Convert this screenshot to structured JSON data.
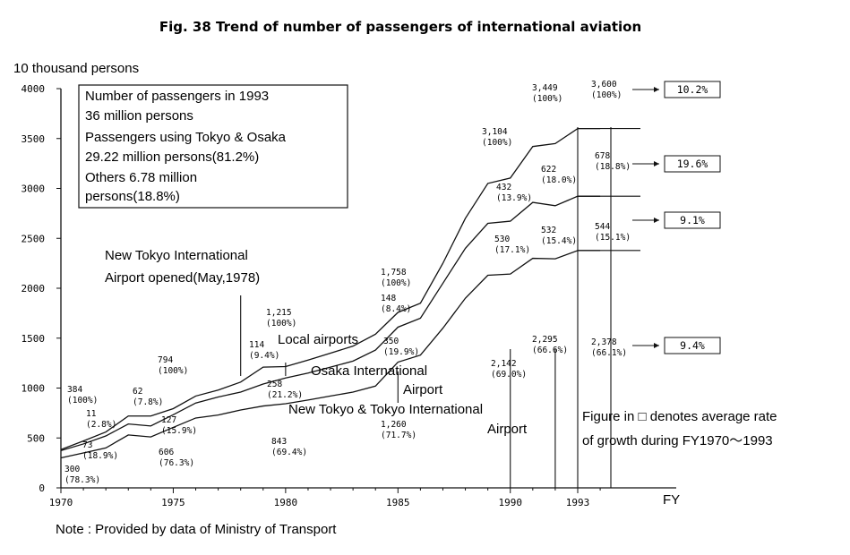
{
  "chart_data": {
    "type": "line",
    "title": "Fig. 38 Trend of number of passengers of international aviation",
    "ylabel": "10 thousand persons",
    "xlabel": "FY",
    "ylim": [
      0,
      4000
    ],
    "yticks": [
      "4000",
      "3500",
      "3000",
      "2500",
      "2000",
      "1500",
      "1000",
      "500",
      "0"
    ],
    "xticks": [
      "1970",
      "1975",
      "1980",
      "1985",
      "1990",
      "1993"
    ],
    "x": [
      1970,
      1971,
      1972,
      1973,
      1974,
      1975,
      1976,
      1977,
      1978,
      1979,
      1980,
      1981,
      1982,
      1983,
      1984,
      1985,
      1986,
      1987,
      1988,
      1989,
      1990,
      1991,
      1992,
      1993,
      1994
    ],
    "series": [
      {
        "values": [
          300,
          350,
          400,
          530,
          510,
          606,
          700,
          730,
          780,
          820,
          843,
          880,
          920,
          960,
          1020,
          1260,
          1330,
          1600,
          1900,
          2130,
          2142,
          2300,
          2295,
          2378,
          2378
        ]
      },
      {
        "values": [
          373,
          440,
          520,
          640,
          620,
          733,
          850,
          910,
          960,
          1040,
          1101,
          1150,
          1210,
          1270,
          1380,
          1610,
          1700,
          2050,
          2400,
          2650,
          2672,
          2860,
          2827,
          2922,
          2922
        ]
      },
      {
        "values": [
          384,
          470,
          560,
          720,
          720,
          794,
          920,
          980,
          1060,
          1210,
          1215,
          1280,
          1350,
          1420,
          1540,
          1758,
          1850,
          2250,
          2700,
          3050,
          3104,
          3420,
          3449,
          3600,
          3600
        ]
      }
    ],
    "point_labels": [
      {
        "value": "384",
        "pct": "(100%)"
      },
      {
        "value": "11",
        "pct": "(2.8%)"
      },
      {
        "value": "73",
        "pct": "(18.9%)"
      },
      {
        "value": "300",
        "pct": "(78.3%)"
      },
      {
        "value": "62",
        "pct": "(7.8%)"
      },
      {
        "value": "794",
        "pct": "(100%)"
      },
      {
        "value": "127",
        "pct": "(15.9%)"
      },
      {
        "value": "606",
        "pct": "(76.3%)"
      },
      {
        "value": "1,215",
        "pct": "(100%)"
      },
      {
        "value": "114",
        "pct": "(9.4%)"
      },
      {
        "value": "258",
        "pct": "(21.2%)"
      },
      {
        "value": "843",
        "pct": "(69.4%)"
      },
      {
        "value": "1,758",
        "pct": "(100%)"
      },
      {
        "value": "148",
        "pct": "(8.4%)"
      },
      {
        "value": "350",
        "pct": "(19.9%)"
      },
      {
        "value": "1,260",
        "pct": "(71.7%)"
      },
      {
        "value": "3,104",
        "pct": "(100%)"
      },
      {
        "value": "432",
        "pct": "(13.9%)"
      },
      {
        "value": "530",
        "pct": "(17.1%)"
      },
      {
        "value": "2,142",
        "pct": "(69.0%)"
      },
      {
        "value": "3,449",
        "pct": "(100%)"
      },
      {
        "value": "622",
        "pct": "(18.0%)"
      },
      {
        "value": "532",
        "pct": "(15.4%)"
      },
      {
        "value": "2,295",
        "pct": "(66.6%)"
      },
      {
        "value": "3,600",
        "pct": "(100%)"
      },
      {
        "value": "678",
        "pct": "(18.8%)"
      },
      {
        "value": "544",
        "pct": "(15.1%)"
      },
      {
        "value": "2,378",
        "pct": "(66.1%)"
      }
    ],
    "growth_rates": [
      "10.2%",
      "19.6%",
      "9.1%",
      "9.4%"
    ],
    "info_box": [
      "Number of passengers in 1993",
      "36 million persons",
      "Passengers using Tokyo & Osaka",
      "29.22 million persons(81.2%)",
      "Others   6.78 million",
      "persons(18.8%)"
    ],
    "annotations": {
      "opened_1": "New Tokyo International",
      "opened_2": "Airport opened(May,1978)",
      "local": "Local airports",
      "osaka_1": "Osaka International",
      "osaka_2": "Airport",
      "tokyo_1": "New Tokyo & Tokyo International",
      "tokyo_2": "Airport",
      "legend_1": "Figure in □ denotes average rate",
      "legend_2": "of growth during FY1970～1993"
    },
    "note": "Note : Provided by data of Ministry of Transport"
  }
}
